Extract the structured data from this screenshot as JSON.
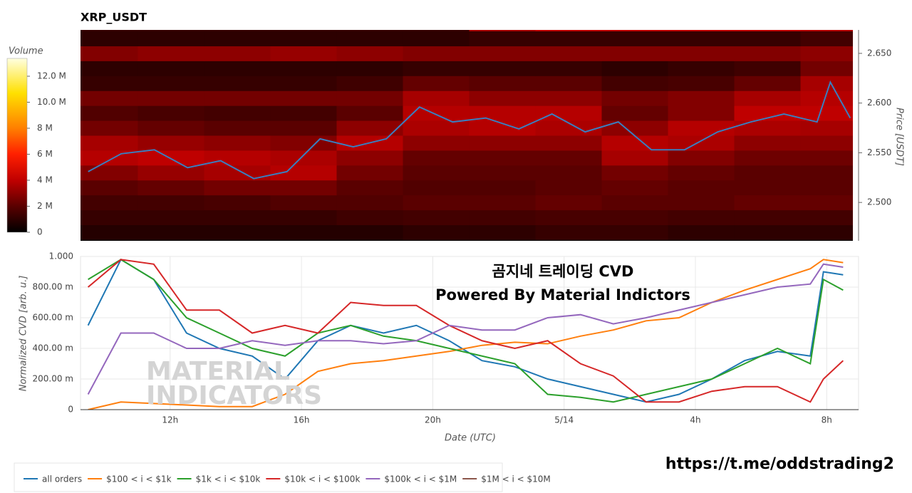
{
  "chart_data": [
    {
      "type": "heatmap",
      "title": "XRP_USDT",
      "x": [
        10,
        12,
        14,
        16,
        18,
        20,
        22,
        24,
        26,
        28,
        30,
        32
      ],
      "y": [
        2.47,
        2.485,
        2.5,
        2.515,
        2.53,
        2.545,
        2.56,
        2.575,
        2.59,
        2.605,
        2.62,
        2.635,
        2.65,
        2.665,
        2.68
      ],
      "z": [
        [
          0.8,
          0.8,
          0.8,
          0.8,
          0.8,
          1.0,
          1.0,
          1.2,
          1.2,
          1.0,
          1.0,
          1.0
        ],
        [
          1.2,
          1.2,
          1.2,
          1.2,
          1.4,
          1.5,
          1.5,
          1.6,
          1.6,
          1.5,
          1.5,
          1.5
        ],
        [
          1.5,
          1.5,
          1.6,
          1.8,
          1.8,
          2.0,
          2.0,
          2.2,
          2.0,
          2.0,
          2.2,
          2.2
        ],
        [
          2.0,
          2.2,
          2.5,
          2.5,
          2.0,
          1.8,
          1.8,
          2.0,
          2.2,
          2.0,
          2.0,
          2.0
        ],
        [
          2.8,
          3.2,
          3.5,
          3.8,
          2.5,
          2.0,
          2.0,
          2.0,
          2.5,
          2.2,
          2.0,
          2.0
        ],
        [
          3.8,
          4.0,
          3.8,
          3.6,
          3.0,
          2.2,
          2.2,
          2.2,
          3.5,
          2.8,
          2.4,
          2.4
        ],
        [
          3.5,
          3.2,
          3.0,
          2.8,
          3.8,
          3.0,
          3.0,
          3.0,
          3.8,
          3.6,
          3.0,
          3.0
        ],
        [
          2.5,
          2.2,
          2.0,
          2.0,
          3.0,
          3.6,
          3.8,
          3.6,
          3.0,
          3.8,
          3.6,
          3.5
        ],
        [
          1.8,
          1.6,
          1.5,
          1.5,
          2.0,
          3.8,
          3.8,
          3.8,
          2.2,
          2.8,
          4.0,
          4.0
        ],
        [
          2.5,
          2.5,
          2.5,
          2.5,
          2.5,
          3.5,
          3.0,
          3.0,
          2.5,
          2.8,
          3.5,
          3.8
        ],
        [
          1.2,
          1.2,
          1.2,
          1.2,
          1.4,
          2.2,
          2.0,
          2.0,
          1.5,
          1.6,
          2.2,
          3.5
        ],
        [
          1.0,
          1.0,
          1.0,
          1.0,
          1.0,
          1.2,
          1.2,
          1.2,
          1.0,
          1.2,
          1.4,
          2.5
        ],
        [
          2.8,
          3.0,
          3.0,
          3.2,
          3.0,
          2.8,
          2.8,
          2.8,
          2.8,
          2.8,
          2.8,
          3.0
        ],
        [
          1.0,
          1.0,
          1.0,
          1.0,
          1.0,
          1.0,
          1.2,
          1.2,
          1.2,
          1.2,
          1.2,
          1.5
        ],
        [
          1.2,
          1.2,
          1.2,
          1.2,
          1.2,
          1.2,
          3.5,
          4.0,
          4.0,
          4.0,
          4.0,
          3.8
        ]
      ],
      "colorscale": [
        [
          0,
          "#000000"
        ],
        [
          0.15,
          "#5a0000"
        ],
        [
          0.3,
          "#c00000"
        ],
        [
          0.45,
          "#ff2000"
        ],
        [
          0.6,
          "#ff8000"
        ],
        [
          0.8,
          "#ffe000"
        ],
        [
          1,
          "#ffffe0"
        ]
      ],
      "colorbar": {
        "title": "Volume",
        "lim": [
          0,
          13.37
        ],
        "ticks": [
          0,
          {
            "value": 2,
            "label": "2 M"
          },
          {
            "value": 4,
            "label": "4 M"
          },
          {
            "value": 6,
            "label": "6 M"
          },
          {
            "value": 8,
            "label": "8 M"
          },
          {
            "value": 10,
            "label": "10.0 M"
          },
          {
            "value": 12,
            "label": "12.0 M"
          }
        ]
      },
      "line": {
        "color": "#3a7ebf",
        "x": [
          9.5,
          10.5,
          11.5,
          12.5,
          13.5,
          14.5,
          15.5,
          16.5,
          17.5,
          18.5,
          19.5,
          20.5,
          21.5,
          22.5,
          23.5,
          24.5,
          25.5,
          26.5,
          27.5,
          28.5,
          29.5,
          30.5,
          31.5,
          31.9,
          32.5
        ],
        "values": [
          2.531,
          2.549,
          2.553,
          2.535,
          2.542,
          2.524,
          2.531,
          2.564,
          2.556,
          2.564,
          2.596,
          2.581,
          2.585,
          2.574,
          2.589,
          2.571,
          2.581,
          2.553,
          2.553,
          2.571,
          2.581,
          2.589,
          2.581,
          2.621,
          2.585
        ]
      },
      "xlim": [
        9.27,
        32.58
      ],
      "ylim": [
        2.4614,
        2.6736
      ],
      "yticks": [
        {
          "value": 2.5,
          "label": "2.500"
        },
        {
          "value": 2.55,
          "label": "2.550"
        },
        {
          "value": 2.6,
          "label": "2.600"
        },
        {
          "value": 2.65,
          "label": "2.650"
        }
      ],
      "ylabel": "Price [USDT]"
    },
    {
      "type": "line",
      "x": [
        9.5,
        10.5,
        11.5,
        12.5,
        13.5,
        14.5,
        15.5,
        16.5,
        17.5,
        18.5,
        19.5,
        20.5,
        21.5,
        22.5,
        23.5,
        24.5,
        25.5,
        26.5,
        27.5,
        28.5,
        29.5,
        30.5,
        31.5,
        31.9,
        32.5
      ],
      "series": [
        {
          "name": "all orders",
          "color": "#1f77b4",
          "values": [
            0.55,
            0.98,
            0.85,
            0.5,
            0.4,
            0.35,
            0.2,
            0.45,
            0.55,
            0.5,
            0.55,
            0.45,
            0.32,
            0.28,
            0.2,
            0.15,
            0.1,
            0.05,
            0.1,
            0.2,
            0.32,
            0.38,
            0.35,
            0.9,
            0.88
          ]
        },
        {
          "name": "$100 < i < $1k",
          "color": "#ff7f0e",
          "values": [
            0.0,
            0.05,
            0.04,
            0.03,
            0.02,
            0.02,
            0.1,
            0.25,
            0.3,
            0.32,
            0.35,
            0.38,
            0.42,
            0.44,
            0.43,
            0.48,
            0.52,
            0.58,
            0.6,
            0.7,
            0.78,
            0.85,
            0.92,
            0.98,
            0.96
          ]
        },
        {
          "name": "$1k < i < $10k",
          "color": "#2ca02c",
          "values": [
            0.85,
            0.98,
            0.85,
            0.6,
            0.5,
            0.4,
            0.35,
            0.5,
            0.55,
            0.48,
            0.45,
            0.4,
            0.35,
            0.3,
            0.1,
            0.08,
            0.05,
            0.1,
            0.15,
            0.2,
            0.3,
            0.4,
            0.3,
            0.85,
            0.78
          ]
        },
        {
          "name": "$10k < i < $100k",
          "color": "#d62728",
          "values": [
            0.8,
            0.98,
            0.95,
            0.65,
            0.65,
            0.5,
            0.55,
            0.5,
            0.7,
            0.68,
            0.68,
            0.55,
            0.45,
            0.4,
            0.45,
            0.3,
            0.22,
            0.05,
            0.05,
            0.12,
            0.15,
            0.15,
            0.05,
            0.2,
            0.32
          ]
        },
        {
          "name": "$100k < i < $1M",
          "color": "#9467bd",
          "values": [
            0.1,
            0.5,
            0.5,
            0.4,
            0.4,
            0.45,
            0.42,
            0.45,
            0.45,
            0.43,
            0.45,
            0.55,
            0.52,
            0.52,
            0.6,
            0.62,
            0.56,
            0.6,
            0.65,
            0.7,
            0.75,
            0.8,
            0.82,
            0.95,
            0.93
          ]
        },
        {
          "name": "$1M < i < $10M",
          "color": "#8c564b",
          "values": [
            null,
            null,
            null,
            null,
            null,
            null,
            null,
            null,
            null,
            null,
            null,
            null,
            null,
            null,
            null,
            null,
            null,
            null,
            null,
            null,
            null,
            null,
            null,
            null,
            null
          ]
        }
      ],
      "xlim": [
        9.27,
        32.97
      ],
      "ylim": [
        0,
        1
      ],
      "xticks": [
        {
          "value": 12,
          "label": "12h"
        },
        {
          "value": 16,
          "label": "16h"
        },
        {
          "value": 20,
          "label": "20h"
        },
        {
          "value": 24,
          "label": "5/14"
        },
        {
          "value": 28,
          "label": "4h"
        },
        {
          "value": 32,
          "label": "8h"
        }
      ],
      "yticks": [
        0,
        {
          "value": 0.2,
          "label": "200.00 m"
        },
        {
          "value": 0.4,
          "label": "400.00 m"
        },
        {
          "value": 0.6,
          "label": "600.00 m"
        },
        {
          "value": 0.8,
          "label": "800.00 m"
        },
        {
          "value": 1,
          "label": "1.000"
        }
      ],
      "xlabel": "Date (UTC)",
      "ylabel": "Normalized CVD [arb. u.]",
      "grid": true
    }
  ],
  "overlay": {
    "title": "곰지네 트레이딩 CVD",
    "subtitle": "Powered By Material Indictors"
  },
  "watermark": [
    "MATERIAL",
    "INDICATORS"
  ],
  "url": "https://t.me/oddstrading2"
}
